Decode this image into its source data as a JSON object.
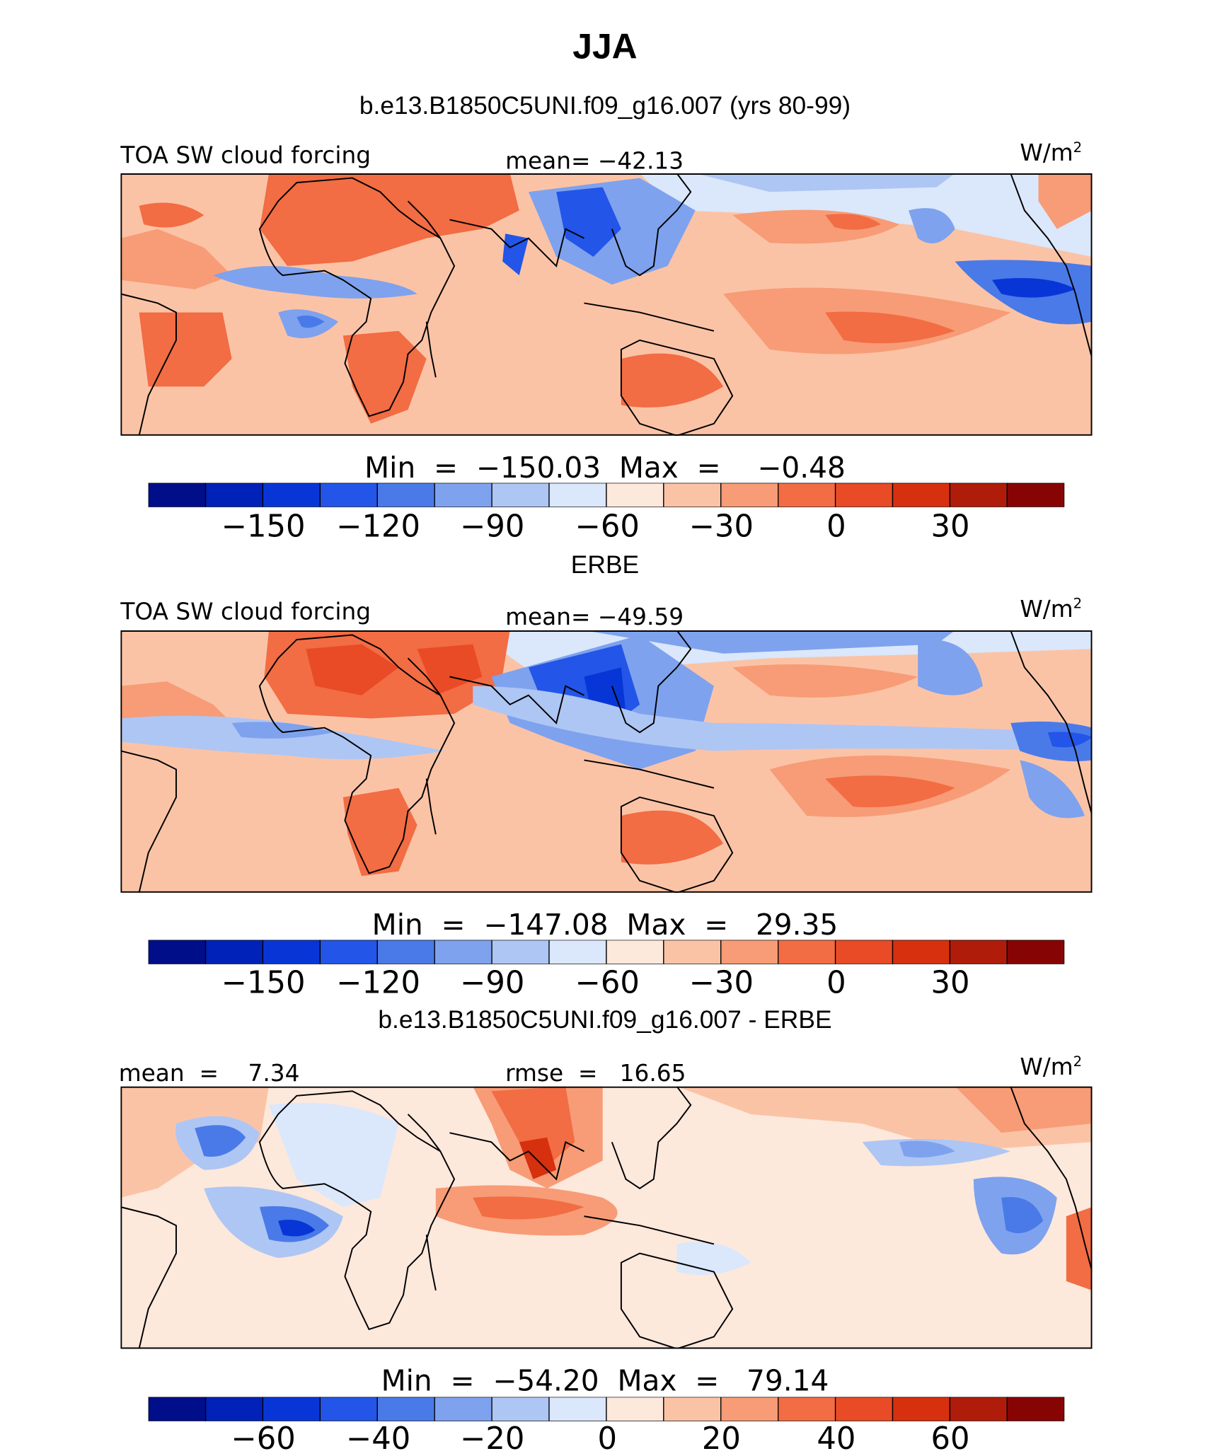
{
  "figure": {
    "season": "JJA",
    "case_title": "b.e13.B1850C5UNI.f09_g16.007 (yrs 80-99)",
    "obs_title": "ERBE",
    "diff_title": "b.e13.B1850C5UNI.f09_g16.007 - ERBE",
    "units": "W/m",
    "units_exp": "2"
  },
  "colors": {
    "palette": [
      "#000e8a",
      "#0022b8",
      "#0836d6",
      "#2255e8",
      "#4a7ae8",
      "#7ea2ee",
      "#aec6f4",
      "#dbe7fb",
      "#fde8dc",
      "#fbc3a6",
      "#f79c76",
      "#f26c44",
      "#e84b25",
      "#d6300f",
      "#b01c0a",
      "#870404"
    ],
    "coast": "#000000"
  },
  "panels": [
    {
      "id": "model",
      "left_label": "TOA SW cloud forcing",
      "center_label": "mean= −42.13",
      "min_text": "Min  =  −150.03  Max  =    −0.48",
      "ticks": [
        "−150",
        "−120",
        "−90",
        "−60",
        "−30",
        "0",
        "30"
      ]
    },
    {
      "id": "obs",
      "left_label": "TOA SW cloud forcing",
      "center_label": "mean= −49.59",
      "min_text": "Min  =  −147.08  Max  =   29.35",
      "ticks": [
        "−150",
        "−120",
        "−90",
        "−60",
        "−30",
        "0",
        "30"
      ]
    },
    {
      "id": "diff",
      "left_label": "mean  =    7.34",
      "center_label": "rmse  =   16.65",
      "min_text": "Min  =  −54.20  Max  =   79.14",
      "ticks": [
        "−60",
        "−40",
        "−20",
        "0",
        "20",
        "40",
        "60"
      ]
    }
  ]
}
